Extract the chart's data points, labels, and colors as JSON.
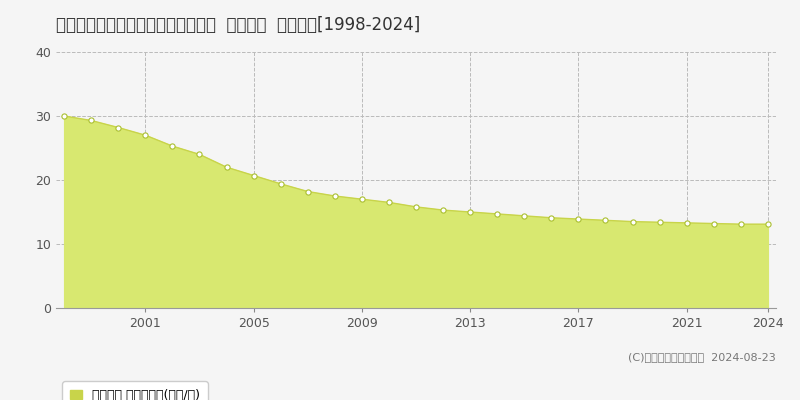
{
  "title": "岐阜県岐阜市粟野東３丁目３４番外  地価公示  地価推移[1998-2024]",
  "years": [
    1998,
    1999,
    2000,
    2001,
    2002,
    2003,
    2004,
    2005,
    2006,
    2007,
    2008,
    2009,
    2010,
    2011,
    2012,
    2013,
    2014,
    2015,
    2016,
    2017,
    2018,
    2019,
    2020,
    2021,
    2022,
    2023,
    2024
  ],
  "values": [
    30.0,
    29.3,
    28.2,
    27.0,
    25.3,
    24.0,
    22.0,
    20.7,
    19.4,
    18.2,
    17.5,
    17.0,
    16.5,
    15.8,
    15.3,
    15.0,
    14.7,
    14.4,
    14.1,
    13.9,
    13.7,
    13.5,
    13.4,
    13.3,
    13.2,
    13.1,
    13.1
  ],
  "line_color": "#c8d44a",
  "fill_color": "#d8e870",
  "marker_color": "white",
  "marker_edge_color": "#aabf30",
  "ylim": [
    0,
    40
  ],
  "yticks": [
    0,
    10,
    20,
    30,
    40
  ],
  "xticks": [
    2001,
    2005,
    2009,
    2013,
    2017,
    2021,
    2024
  ],
  "grid_color": "#bbbbbb",
  "bg_color": "#f5f5f5",
  "plot_bg_color": "#f5f5f5",
  "legend_label": "地価公示 平均坪単価(万円/坪)",
  "legend_color": "#c8d44a",
  "copyright_text": "(C)土地価格ドットコム  2024-08-23",
  "title_fontsize": 12,
  "axis_fontsize": 9,
  "legend_fontsize": 9,
  "copyright_fontsize": 8
}
